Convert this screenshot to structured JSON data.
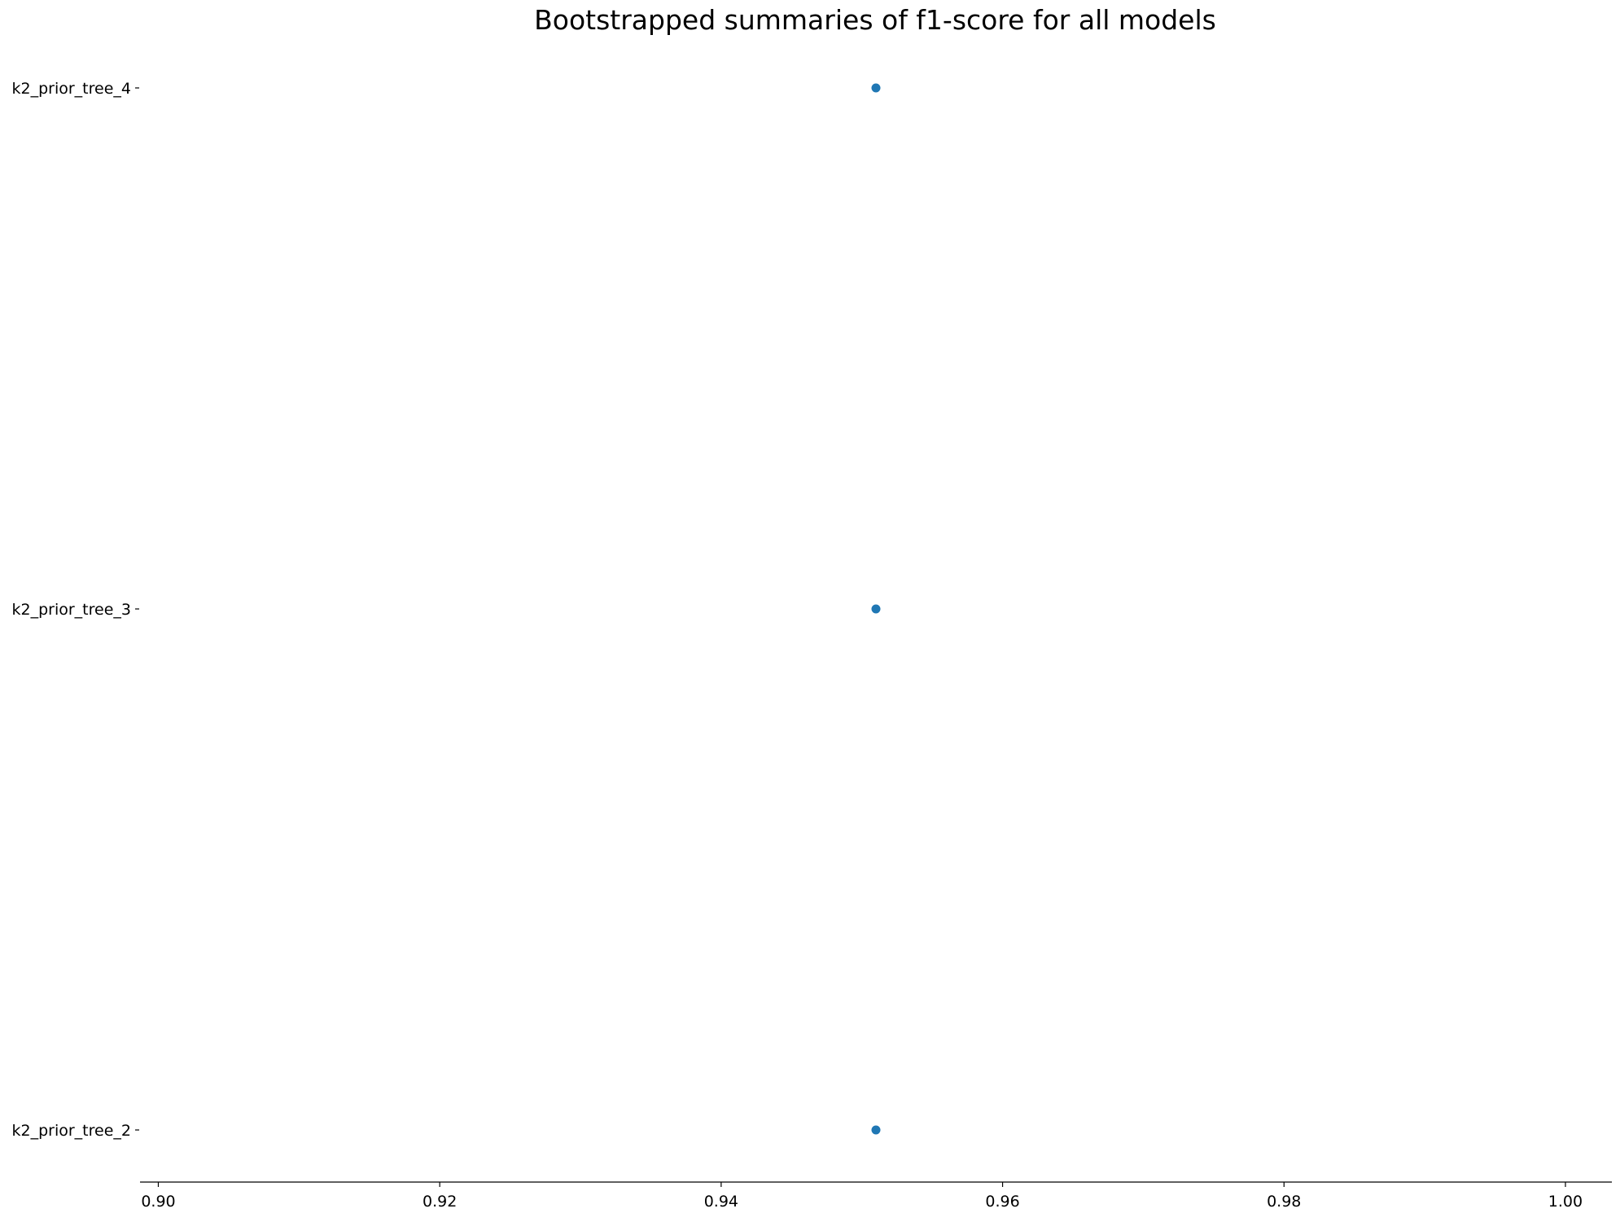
{
  "chart_data": {
    "type": "scatter",
    "title": "Bootstrapped summaries of f1-score for all models",
    "xlabel": "",
    "ylabel": "",
    "xlim": [
      0.8987,
      1.0033
    ],
    "x_ticks": [
      "0.90",
      "0.92",
      "0.94",
      "0.96",
      "0.98",
      "1.00"
    ],
    "categories": [
      "k2_prior_tree_4",
      "k2_prior_tree_3",
      "k2_prior_tree_2"
    ],
    "series": [
      {
        "values": [
          0.951,
          0.951,
          0.951
        ]
      }
    ],
    "grid": false,
    "legend": "none",
    "marker_color": "#1f77b4",
    "axis_color": "#000000"
  }
}
